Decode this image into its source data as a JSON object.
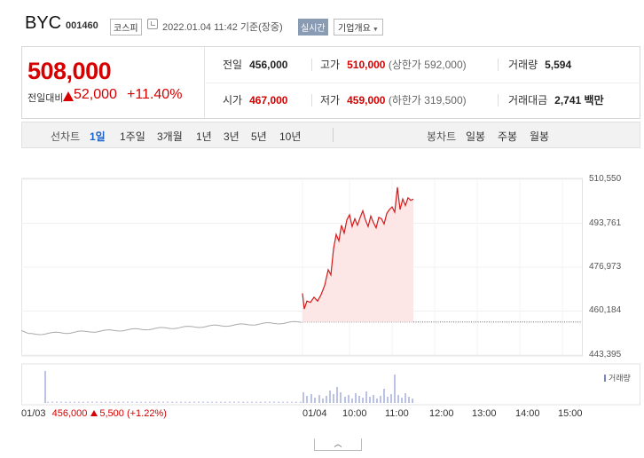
{
  "header": {
    "name": "BYC",
    "code": "001460",
    "market": "코스피",
    "datetime": "2022.01.04 11:42",
    "basis": "기준(장중)",
    "live_label": "실시간",
    "corp_label": "기업개요"
  },
  "price": {
    "now": "508,000",
    "prev_label": "전일대비",
    "change": "52,000",
    "rate": "+11.40%",
    "direction": "up"
  },
  "summary": {
    "prev_close": {
      "label": "전일",
      "value": "456,000"
    },
    "high": {
      "label": "고가",
      "value": "510,000",
      "sub": "(상한가 592,000)"
    },
    "volume": {
      "label": "거래량",
      "value": "5,594"
    },
    "open": {
      "label": "시가",
      "value": "467,000"
    },
    "low": {
      "label": "저가",
      "value": "459,000",
      "sub": "(하한가 319,500)"
    },
    "amount": {
      "label": "거래대금",
      "value": "2,741",
      "unit": "백만"
    }
  },
  "tabs": {
    "line_label": "선차트",
    "line_periods": [
      "1일",
      "1주일",
      "3개월",
      "1년",
      "3년",
      "5년",
      "10년"
    ],
    "active_period": "1일",
    "candle_label": "봉차트",
    "candle_periods": [
      "일봉",
      "주봉",
      "월봉"
    ]
  },
  "chart_data": {
    "type": "line",
    "y_ticks": [
      "510,550",
      "493,761",
      "476,973",
      "460,184",
      "443,395"
    ],
    "ylim": [
      443395,
      510550
    ],
    "x_ticks": [
      "01/04",
      "10:00",
      "11:00",
      "12:00",
      "13:00",
      "14:00",
      "15:00"
    ],
    "prev_day_label": "01/03",
    "prev_day_value": "456,000",
    "prev_day_change": "5,500",
    "prev_day_rate": "(+1.22%)",
    "reference_line": 456000,
    "volume_label": "거래량",
    "colors": {
      "today_line": "#d31919",
      "today_fill": "#fde6e6",
      "prev_line": "#aaaaaa",
      "volume": "#7a85c8"
    }
  },
  "collapse_icon": "chevron-up-icon"
}
